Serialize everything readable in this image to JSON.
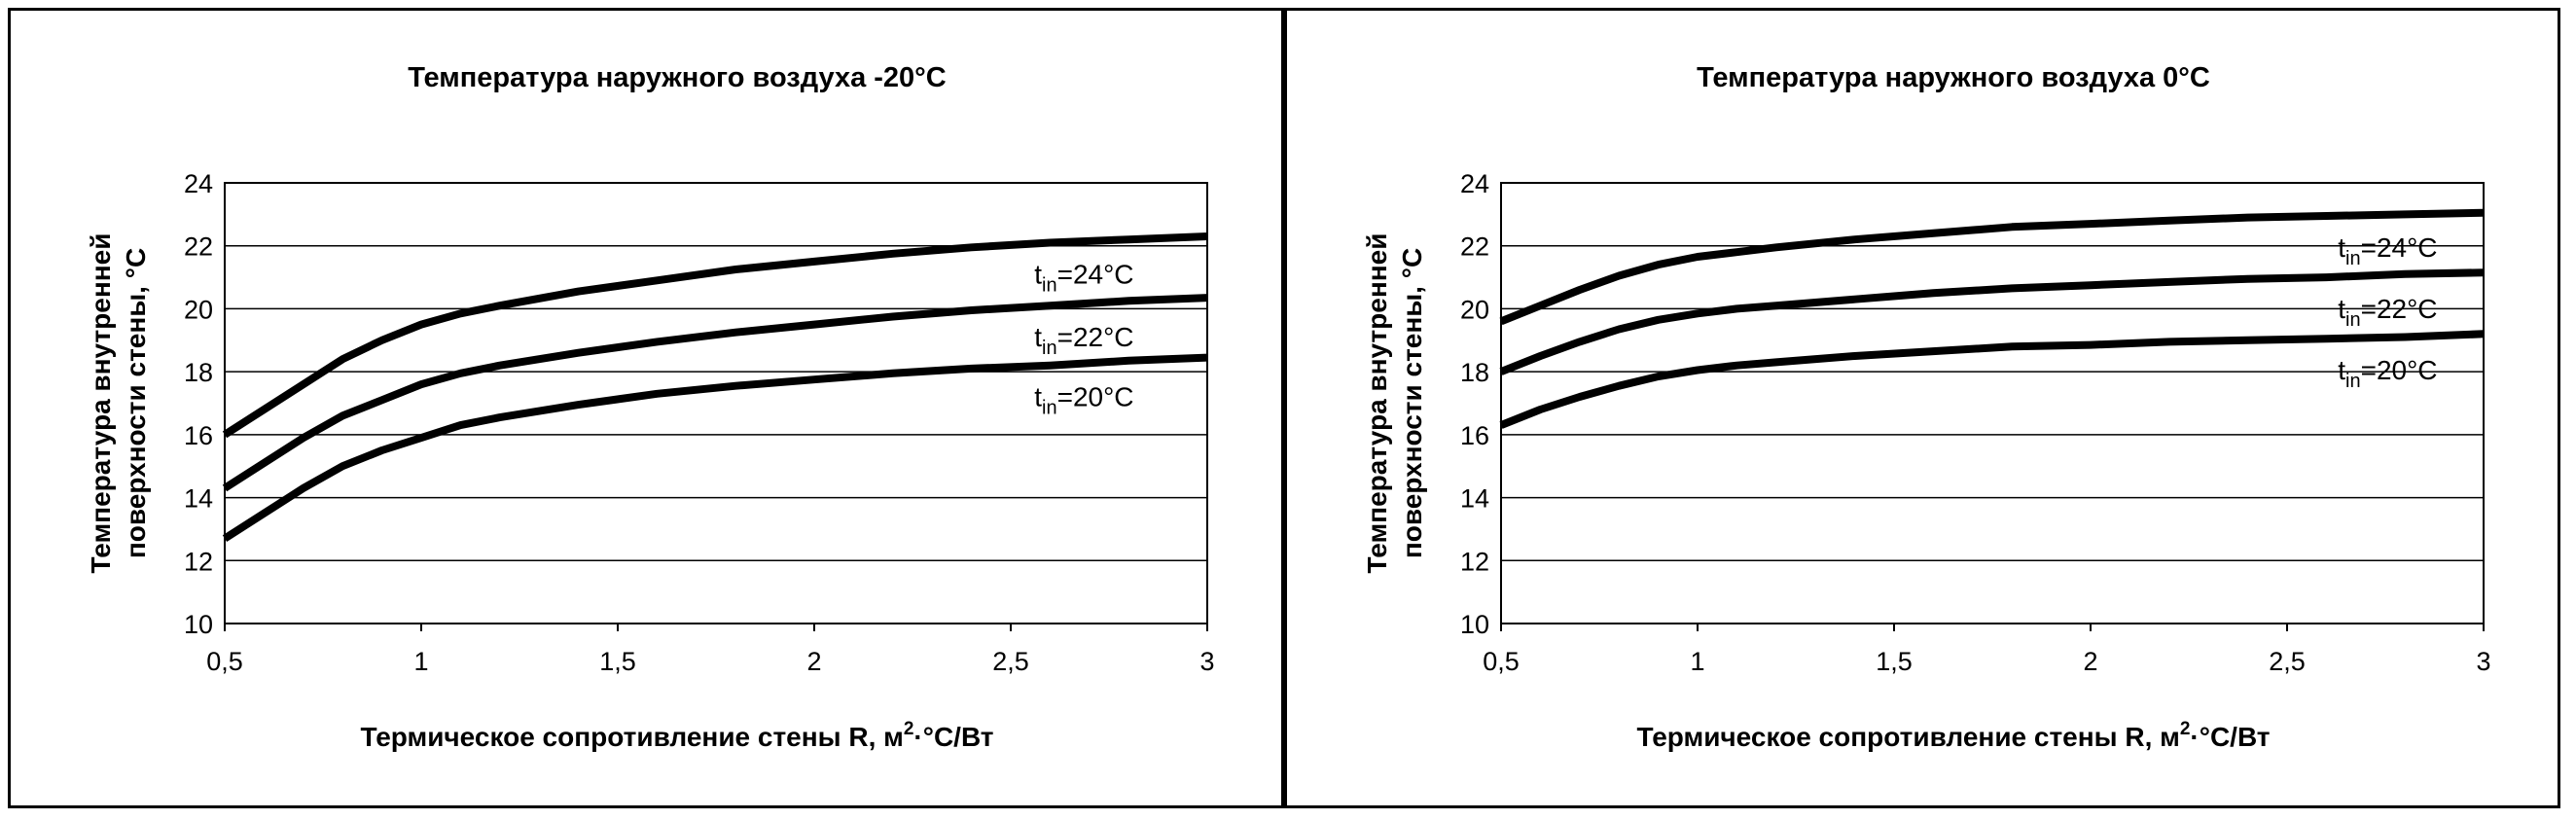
{
  "chart_data": [
    {
      "type": "line",
      "title": "Температура наружного воздуха -20°С",
      "xlabel_main": "Термическое сопротивление стены R, м",
      "xlabel_sup": "2",
      "xlabel_tail": "·°С/Вт",
      "ylabel_lines": [
        "Температура внутренней",
        "поверхности стены, °С"
      ],
      "xlim": [
        0.5,
        3
      ],
      "ylim": [
        10,
        24
      ],
      "xticks": [
        "0,5",
        "1",
        "1,5",
        "2",
        "2,5",
        "3"
      ],
      "yticks": [
        "10",
        "12",
        "14",
        "16",
        "18",
        "20",
        "22",
        "24"
      ],
      "grid": true,
      "x": [
        0.5,
        0.6,
        0.7,
        0.8,
        0.9,
        1.0,
        1.1,
        1.2,
        1.4,
        1.6,
        1.8,
        2.0,
        2.2,
        2.4,
        2.6,
        2.8,
        3.0
      ],
      "series": [
        {
          "name_base": "t",
          "name_sub": "in",
          "name_tail": "=24°С",
          "values": [
            16.0,
            16.8,
            17.6,
            18.4,
            19.0,
            19.5,
            19.85,
            20.1,
            20.55,
            20.9,
            21.25,
            21.5,
            21.75,
            21.95,
            22.1,
            22.2,
            22.3
          ]
        },
        {
          "name_base": "t",
          "name_sub": "in",
          "name_tail": "=22°С",
          "values": [
            14.3,
            15.1,
            15.9,
            16.6,
            17.1,
            17.6,
            17.95,
            18.2,
            18.6,
            18.95,
            19.25,
            19.5,
            19.75,
            19.95,
            20.1,
            20.25,
            20.35
          ]
        },
        {
          "name_base": "t",
          "name_sub": "in",
          "name_tail": "=20°С",
          "values": [
            12.7,
            13.5,
            14.3,
            15.0,
            15.5,
            15.9,
            16.3,
            16.55,
            16.95,
            17.3,
            17.55,
            17.75,
            17.95,
            18.1,
            18.2,
            18.35,
            18.45
          ]
        }
      ]
    },
    {
      "type": "line",
      "title": "Температура наружного воздуха 0°С",
      "xlabel_main": "Термическое сопротивление стены R, м",
      "xlabel_sup": "2",
      "xlabel_tail": "·°С/Вт",
      "ylabel_lines": [
        "Температура внутренней",
        "поверхности стены, °С"
      ],
      "xlim": [
        0.5,
        3
      ],
      "ylim": [
        10,
        24
      ],
      "xticks": [
        "0,5",
        "1",
        "1,5",
        "2",
        "2,5",
        "3"
      ],
      "yticks": [
        "10",
        "12",
        "14",
        "16",
        "18",
        "20",
        "22",
        "24"
      ],
      "grid": true,
      "x": [
        0.5,
        0.6,
        0.7,
        0.8,
        0.9,
        1.0,
        1.1,
        1.2,
        1.4,
        1.6,
        1.8,
        2.0,
        2.2,
        2.4,
        2.6,
        2.8,
        3.0
      ],
      "series": [
        {
          "name_base": "t",
          "name_sub": "in",
          "name_tail": "=24°С",
          "values": [
            19.6,
            20.1,
            20.6,
            21.05,
            21.4,
            21.65,
            21.8,
            21.95,
            22.2,
            22.4,
            22.6,
            22.7,
            22.8,
            22.9,
            22.95,
            23.0,
            23.05
          ]
        },
        {
          "name_base": "t",
          "name_sub": "in",
          "name_tail": "=22°С",
          "values": [
            18.0,
            18.5,
            18.95,
            19.35,
            19.65,
            19.85,
            20.0,
            20.1,
            20.3,
            20.5,
            20.65,
            20.75,
            20.85,
            20.95,
            21.0,
            21.1,
            21.15
          ]
        },
        {
          "name_base": "t",
          "name_sub": "in",
          "name_tail": "=20°С",
          "values": [
            16.3,
            16.8,
            17.2,
            17.55,
            17.85,
            18.05,
            18.2,
            18.3,
            18.5,
            18.65,
            18.8,
            18.85,
            18.95,
            19.0,
            19.05,
            19.1,
            19.2
          ]
        }
      ]
    }
  ]
}
